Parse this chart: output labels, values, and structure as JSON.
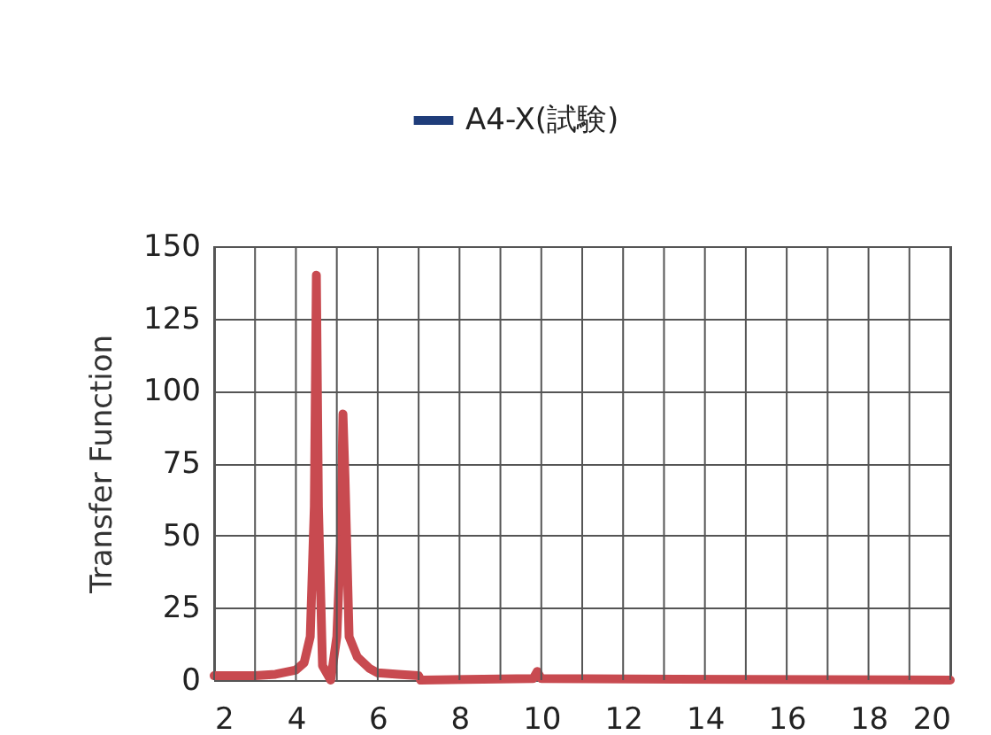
{
  "chart_data": {
    "type": "line",
    "ylabel": "Transfer Function",
    "xlim": [
      2,
      20
    ],
    "ylim": [
      0,
      150
    ],
    "xticks": [
      2,
      {
        "value": 3,
        "label": null
      },
      4,
      {
        "value": 5,
        "label": null
      },
      6,
      {
        "value": 7,
        "label": null
      },
      8,
      {
        "value": 9,
        "label": null
      },
      10,
      {
        "value": 11,
        "label": null
      },
      12,
      {
        "value": 13,
        "label": null
      },
      14,
      {
        "value": 15,
        "label": null
      },
      16,
      {
        "value": 17,
        "label": null
      },
      18,
      {
        "value": 19,
        "label": null
      },
      20
    ],
    "yticks": [
      0,
      25,
      50,
      75,
      100,
      125,
      150
    ],
    "grid": true,
    "legend": "top",
    "line_style": "solid",
    "series": [
      {
        "name": "A4-X(試験)",
        "color": "#1f3d7a"
      },
      {
        "color": "#c84a50",
        "x": [
          2,
          3,
          3.5,
          4,
          4.2,
          4.35,
          4.45,
          4.5,
          4.55,
          4.65,
          4.85,
          5.0,
          5.1,
          5.15,
          5.2,
          5.3,
          5.5,
          5.8,
          6,
          6.5,
          7,
          7.05,
          9.8,
          9.9,
          10,
          20
        ],
        "values": [
          1.5,
          1.5,
          2,
          3.5,
          6,
          15,
          60,
          140,
          60,
          5,
          0,
          15,
          50,
          92,
          70,
          15,
          8,
          4,
          2.5,
          2,
          1.5,
          0,
          0.5,
          3,
          0.5,
          0
        ]
      }
    ]
  }
}
